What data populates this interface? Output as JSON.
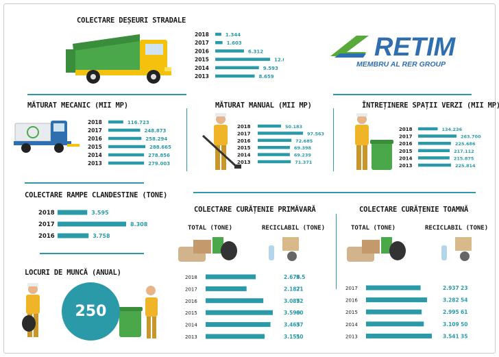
{
  "brand": {
    "name": "RETIM",
    "tagline": "MEMBRU AL RER GROUP"
  },
  "colors": {
    "teal": "#2a9aa8",
    "brand_blue": "#2f6fb0",
    "brand_green": "#58a83a",
    "truck_green": "#4aa84a",
    "vest_yellow": "#f0b428"
  },
  "icons": [
    "garbage-truck-icon",
    "street-sweeper-icon",
    "sweeping-worker-icon",
    "gardener-worker-icon",
    "bin-worker-icon",
    "waste-pile-icon",
    "recyclables-icon",
    "people-at-work-icon"
  ],
  "sections": {
    "collection": {
      "title": "COLECTARE DEȘEURI STRADALE"
    },
    "mechanical": {
      "title": "MĂTURAT MECANIC (MII MP)"
    },
    "manual": {
      "title": "MĂTURAT MANUAL (MII MP)"
    },
    "green": {
      "title": "ÎNTREȚINERE SPAȚII VERZI (MII MP)"
    },
    "ramps": {
      "title": "COLECTARE RAMPE CLANDESTINE (TONE)"
    },
    "jobs": {
      "title": "LOCURI DE MUNCĂ (ANUAL)",
      "value": "250"
    },
    "spring": {
      "title": "COLECTARE CURĂȚENIE PRIMĂVARĂ",
      "total_label": "TOTAL (TONE)",
      "recyclable_label": "RECICLABIL (TONE)"
    },
    "autumn": {
      "title": "COLECTARE CURĂȚENIE TOAMNĂ",
      "total_label": "TOTAL (TONE)",
      "recyclable_label": "RECICLABIL (TONE)"
    }
  },
  "chart_data": [
    {
      "id": "collection",
      "type": "bar",
      "title": "COLECTARE DEȘEURI STRADALE",
      "categories": [
        "2018",
        "2017",
        "2016",
        "2015",
        "2014",
        "2013"
      ],
      "values": [
        1344,
        1603,
        6312,
        12043,
        9593,
        8659
      ],
      "labels": [
        "1.344",
        "1.603",
        "6.312",
        "12.043",
        "9.593",
        "8.659"
      ]
    },
    {
      "id": "mechanical",
      "type": "bar",
      "title": "MĂTURAT MECANIC (MII MP)",
      "categories": [
        "2018",
        "2017",
        "2016",
        "2015",
        "2014",
        "2013"
      ],
      "values": [
        116.723,
        248.873,
        258.294,
        288.665,
        278.856,
        279.003
      ],
      "labels": [
        "116.723",
        "248.873",
        "258.294",
        "288.665",
        "278.856",
        "279.003"
      ]
    },
    {
      "id": "manual",
      "type": "bar",
      "title": "MĂTURAT MANUAL (MII MP)",
      "categories": [
        "2018",
        "2017",
        "2016",
        "2015",
        "2014",
        "2013"
      ],
      "values": [
        50.183,
        97.563,
        72.685,
        69.398,
        69.239,
        71.371
      ],
      "labels": [
        "50.183",
        "97.563",
        "72.685",
        "69.398",
        "69.239",
        "71.371"
      ]
    },
    {
      "id": "green",
      "type": "bar",
      "title": "ÎNTREȚINERE SPAȚII VERZI (MII MP)",
      "categories": [
        "2018",
        "2017",
        "2016",
        "2015",
        "2014",
        "2013"
      ],
      "values": [
        134.236,
        263.7,
        225.686,
        217.112,
        215.875,
        225.814
      ],
      "labels": [
        "134.236",
        "263.700",
        "225.686",
        "217.112",
        "215.875",
        "225.814"
      ]
    },
    {
      "id": "ramps",
      "type": "bar",
      "title": "COLECTARE RAMPE CLANDESTINE (TONE)",
      "categories": [
        "2018",
        "2017",
        "2016"
      ],
      "values": [
        3.595,
        8.308,
        3.758
      ],
      "labels": [
        "3.595",
        "8.308",
        "3.758"
      ]
    },
    {
      "id": "spring",
      "type": "bar",
      "title": "COLECTARE CURĂȚENIE PRIMĂVARĂ",
      "categories": [
        "2018",
        "2017",
        "2016",
        "2015",
        "2014",
        "2013"
      ],
      "series": [
        {
          "name": "TOTAL (TONE)",
          "values": [
            2.676,
            2.187,
            3.085,
            3.59,
            3.465,
            3.151
          ],
          "labels": [
            "2.676",
            "2.187",
            "3.085",
            "3.590",
            "3.465",
            "3.151"
          ]
        },
        {
          "name": "RECICLABIL (TONE)",
          "values": [
            9.5,
            21,
            72,
            60,
            37,
            50
          ],
          "labels": [
            "9.5",
            "21",
            "72",
            "60",
            "37",
            "50"
          ]
        }
      ]
    },
    {
      "id": "autumn",
      "type": "bar",
      "title": "COLECTARE CURĂȚENIE TOAMNĂ",
      "categories": [
        "2017",
        "2016",
        "2015",
        "2014",
        "2013"
      ],
      "series": [
        {
          "name": "TOTAL (TONE)",
          "values": [
            2.937,
            3.282,
            2.995,
            3.109,
            3.541
          ],
          "labels": [
            "2.937",
            "3.282",
            "2.995",
            "3.109",
            "3.541"
          ]
        },
        {
          "name": "RECICLABIL (TONE)",
          "values": [
            23,
            54,
            61,
            50,
            35
          ],
          "labels": [
            "23",
            "54",
            "61",
            "50",
            "35"
          ]
        }
      ]
    }
  ]
}
